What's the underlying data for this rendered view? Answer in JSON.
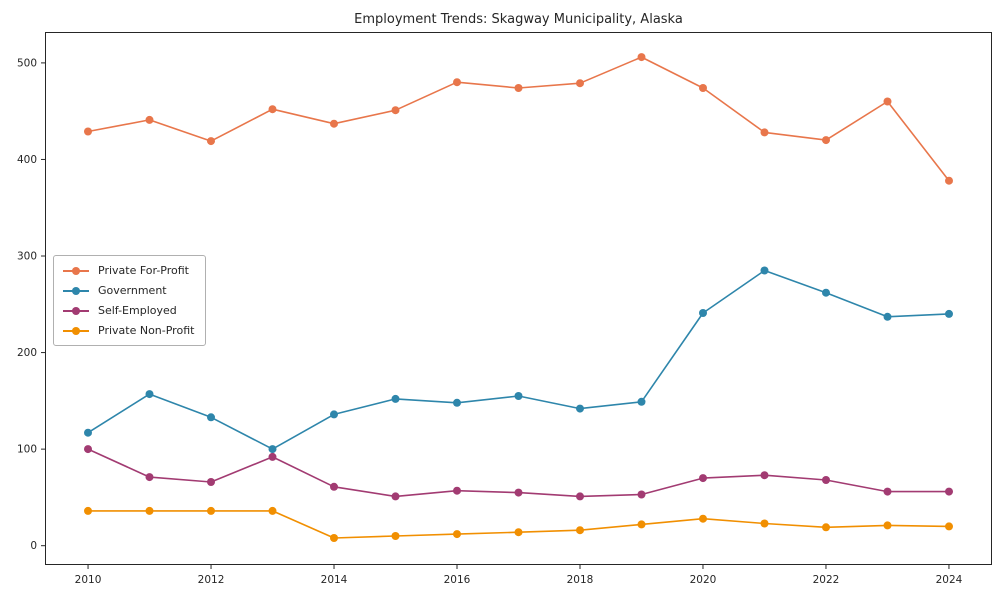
{
  "title": "Employment Trends: Skagway Municipality, Alaska",
  "chart_data": {
    "type": "line",
    "title": "Employment Trends: Skagway Municipality, Alaska",
    "xlabel": "",
    "ylabel": "",
    "x": [
      2010,
      2011,
      2012,
      2013,
      2014,
      2015,
      2016,
      2017,
      2018,
      2019,
      2020,
      2021,
      2022,
      2023,
      2024
    ],
    "series": [
      {
        "name": "Private For-Profit",
        "color": "#E8764B",
        "values": [
          429,
          441,
          419,
          452,
          437,
          451,
          480,
          474,
          479,
          506,
          474,
          428,
          420,
          460,
          378
        ]
      },
      {
        "name": "Government",
        "color": "#2E86AB",
        "values": [
          117,
          157,
          133,
          100,
          136,
          152,
          148,
          155,
          142,
          149,
          241,
          285,
          262,
          237,
          240
        ]
      },
      {
        "name": "Self-Employed",
        "color": "#A23B72",
        "values": [
          100,
          71,
          66,
          92,
          61,
          51,
          57,
          55,
          51,
          53,
          70,
          73,
          68,
          56,
          56
        ]
      },
      {
        "name": "Private Non-Profit",
        "color": "#F18F01",
        "values": [
          36,
          36,
          36,
          36,
          8,
          10,
          12,
          14,
          16,
          22,
          28,
          23,
          19,
          21,
          20
        ]
      }
    ],
    "xticks": [
      2010,
      2012,
      2014,
      2016,
      2018,
      2020,
      2022,
      2024
    ],
    "yticks": [
      0,
      100,
      200,
      300,
      400,
      500
    ],
    "xlim": [
      2009.3,
      2024.7
    ],
    "ylim": [
      -20,
      532
    ],
    "grid": false,
    "legend_position": "center left",
    "frame_color": "#262626",
    "tick_label_color": "#262626"
  }
}
